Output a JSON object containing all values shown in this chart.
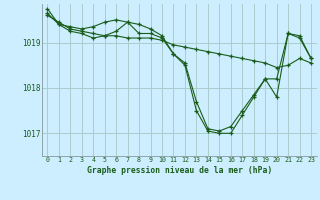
{
  "title": "Graphe pression niveau de la mer (hPa)",
  "bg_color": "#cceeff",
  "grid_color": "#aacccc",
  "line_color": "#1a5c1a",
  "marker_color": "#1a5c1a",
  "xlim": [
    -0.5,
    23.5
  ],
  "ylim": [
    1016.5,
    1019.85
  ],
  "yticks": [
    1017,
    1018,
    1019
  ],
  "xtick_labels": [
    "0",
    "1",
    "2",
    "3",
    "4",
    "5",
    "6",
    "7",
    "8",
    "9",
    "10",
    "11",
    "12",
    "13",
    "14",
    "15",
    "16",
    "17",
    "18",
    "19",
    "20",
    "21",
    "22",
    "23"
  ],
  "series": [
    [
      1019.6,
      1019.45,
      1019.3,
      1019.25,
      1019.2,
      1019.15,
      1019.15,
      1019.1,
      1019.1,
      1019.1,
      1019.05,
      1018.95,
      1018.9,
      1018.85,
      1018.8,
      1018.75,
      1018.7,
      1018.65,
      1018.6,
      1018.55,
      1018.45,
      1018.5,
      1018.65,
      1018.55
    ],
    [
      1019.65,
      1019.4,
      1019.35,
      1019.3,
      1019.35,
      1019.45,
      1019.5,
      1019.45,
      1019.4,
      1019.3,
      1019.15,
      1018.75,
      1018.5,
      1017.5,
      1017.05,
      1017.0,
      1017.0,
      1017.4,
      1017.8,
      1018.2,
      1017.8,
      1019.2,
      1019.1,
      1018.65
    ],
    [
      1019.75,
      1019.4,
      1019.25,
      1019.2,
      1019.1,
      1019.15,
      1019.25,
      1019.45,
      1019.2,
      1019.2,
      1019.1,
      1018.75,
      1018.55,
      1017.7,
      1017.1,
      1017.05,
      1017.15,
      1017.5,
      1017.85,
      1018.2,
      1018.2,
      1019.2,
      1019.15,
      1018.65
    ]
  ]
}
